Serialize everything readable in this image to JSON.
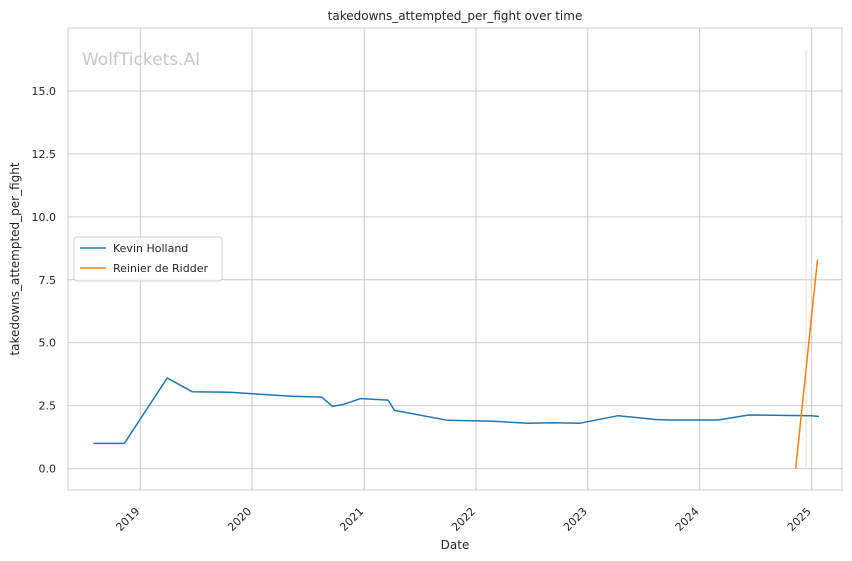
{
  "chart_data": {
    "type": "line",
    "title": "takedowns_attempted_per_fight over time",
    "xlabel": "Date",
    "ylabel": "takedowns_attempted_per_fight",
    "watermark": "WolfTickets.AI",
    "xlim": [
      "2018-05-10",
      "2025-04-10"
    ],
    "ylim": [
      -0.85,
      17.5
    ],
    "x_ticks": [
      "2019",
      "2020",
      "2021",
      "2022",
      "2023",
      "2024",
      "2025"
    ],
    "y_ticks": [
      "0.0",
      "2.5",
      "5.0",
      "7.5",
      "10.0",
      "12.5",
      "15.0"
    ],
    "grid": true,
    "legend_position": "center-left",
    "series": [
      {
        "name": "Kevin Holland",
        "color": "#1f77b4",
        "x": [
          "2018-08-01",
          "2018-11-10",
          "2019-03-30",
          "2019-06-20",
          "2019-10-20",
          "2020-05-10",
          "2020-08-15",
          "2020-09-20",
          "2020-10-25",
          "2020-12-20",
          "2021-03-20",
          "2021-04-10",
          "2021-10-01",
          "2022-03-01",
          "2022-06-20",
          "2022-09-10",
          "2022-12-05",
          "2023-04-10",
          "2023-08-10",
          "2023-09-20",
          "2024-03-01",
          "2024-06-10",
          "2025-01-01",
          "2025-01-25"
        ],
        "y": [
          1.0,
          1.0,
          3.6,
          3.05,
          3.03,
          2.87,
          2.84,
          2.47,
          2.55,
          2.78,
          2.72,
          2.31,
          1.92,
          1.88,
          1.8,
          1.82,
          1.8,
          2.1,
          1.95,
          1.93,
          1.93,
          2.13,
          2.1,
          2.07
        ]
      },
      {
        "name": "Reinier de Ridder",
        "color": "#ff7f0e",
        "x": [
          "2024-11-10",
          "2025-01-20"
        ],
        "y": [
          0.0,
          8.3
        ]
      }
    ]
  }
}
